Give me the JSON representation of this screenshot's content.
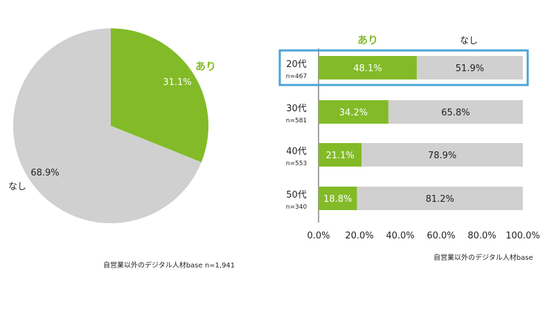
{
  "colors": {
    "yes": "#82bb27",
    "no": "#d0d0d0",
    "highlight": "#4aa3d6",
    "text": "#222222",
    "white": "#ffffff"
  },
  "chart_data": [
    {
      "type": "pie",
      "slices": [
        {
          "label": "あり",
          "value": 31.1,
          "value_label": "31.1%",
          "color": "#82bb27"
        },
        {
          "label": "なし",
          "value": 68.9,
          "value_label": "68.9%",
          "color": "#d0d0d0"
        }
      ],
      "note": "自営業以外のデジタル人材base n=1,941"
    },
    {
      "type": "bar",
      "orientation": "horizontal",
      "stacked": true,
      "legend_labels": [
        "あり",
        "なし"
      ],
      "categories": [
        {
          "label": "20代",
          "n": "n=467"
        },
        {
          "label": "30代",
          "n": "n=581"
        },
        {
          "label": "40代",
          "n": "n=553"
        },
        {
          "label": "50代",
          "n": "n=340"
        }
      ],
      "series": [
        {
          "name": "あり",
          "color": "#82bb27",
          "values": [
            48.1,
            34.2,
            21.1,
            18.8
          ],
          "labels": [
            "48.1%",
            "34.2%",
            "21.1%",
            "18.8%"
          ]
        },
        {
          "name": "なし",
          "color": "#d0d0d0",
          "values": [
            51.9,
            65.8,
            78.9,
            81.2
          ],
          "labels": [
            "51.9%",
            "65.8%",
            "78.9%",
            "81.2%"
          ]
        }
      ],
      "xlim": [
        0,
        100
      ],
      "x_ticks": [
        0,
        20,
        40,
        60,
        80,
        100
      ],
      "x_tick_labels": [
        "0.0%",
        "20.0%",
        "40.0%",
        "60.0%",
        "80.0%",
        "100.0%"
      ],
      "highlighted_category": "20代",
      "note": "自営業以外のデジタル人材base"
    }
  ]
}
